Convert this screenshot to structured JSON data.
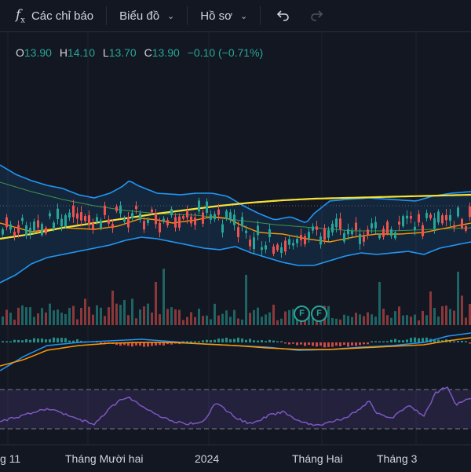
{
  "toolbar": {
    "indicators_label": "Các chỉ báo",
    "chart_label": "Biểu đồ",
    "profile_label": "Hồ sơ"
  },
  "ohlc": {
    "o_key": "O",
    "o": "13.90",
    "h_key": "H",
    "h": "14.10",
    "l_key": "L",
    "l": "13.70",
    "c_key": "C",
    "c": "13.90",
    "change": "−0.10 (−0.71%)"
  },
  "events": {
    "e1": "F",
    "e2": "F"
  },
  "xaxis": {
    "t1": "g 11",
    "t2": "Tháng Mười hai",
    "t3": "2024",
    "t4": "Tháng Hai",
    "t5": "Tháng 3"
  },
  "colors": {
    "up": "#26a69a",
    "down": "#ef5350",
    "bollinger": "#2196f3",
    "ma_long": "#f5e23a",
    "ma_mid": "#ff9800",
    "rsi": "#7e57c2"
  },
  "icons": [
    "fx-icon",
    "chevron-down-icon",
    "undo-icon",
    "redo-icon"
  ]
}
